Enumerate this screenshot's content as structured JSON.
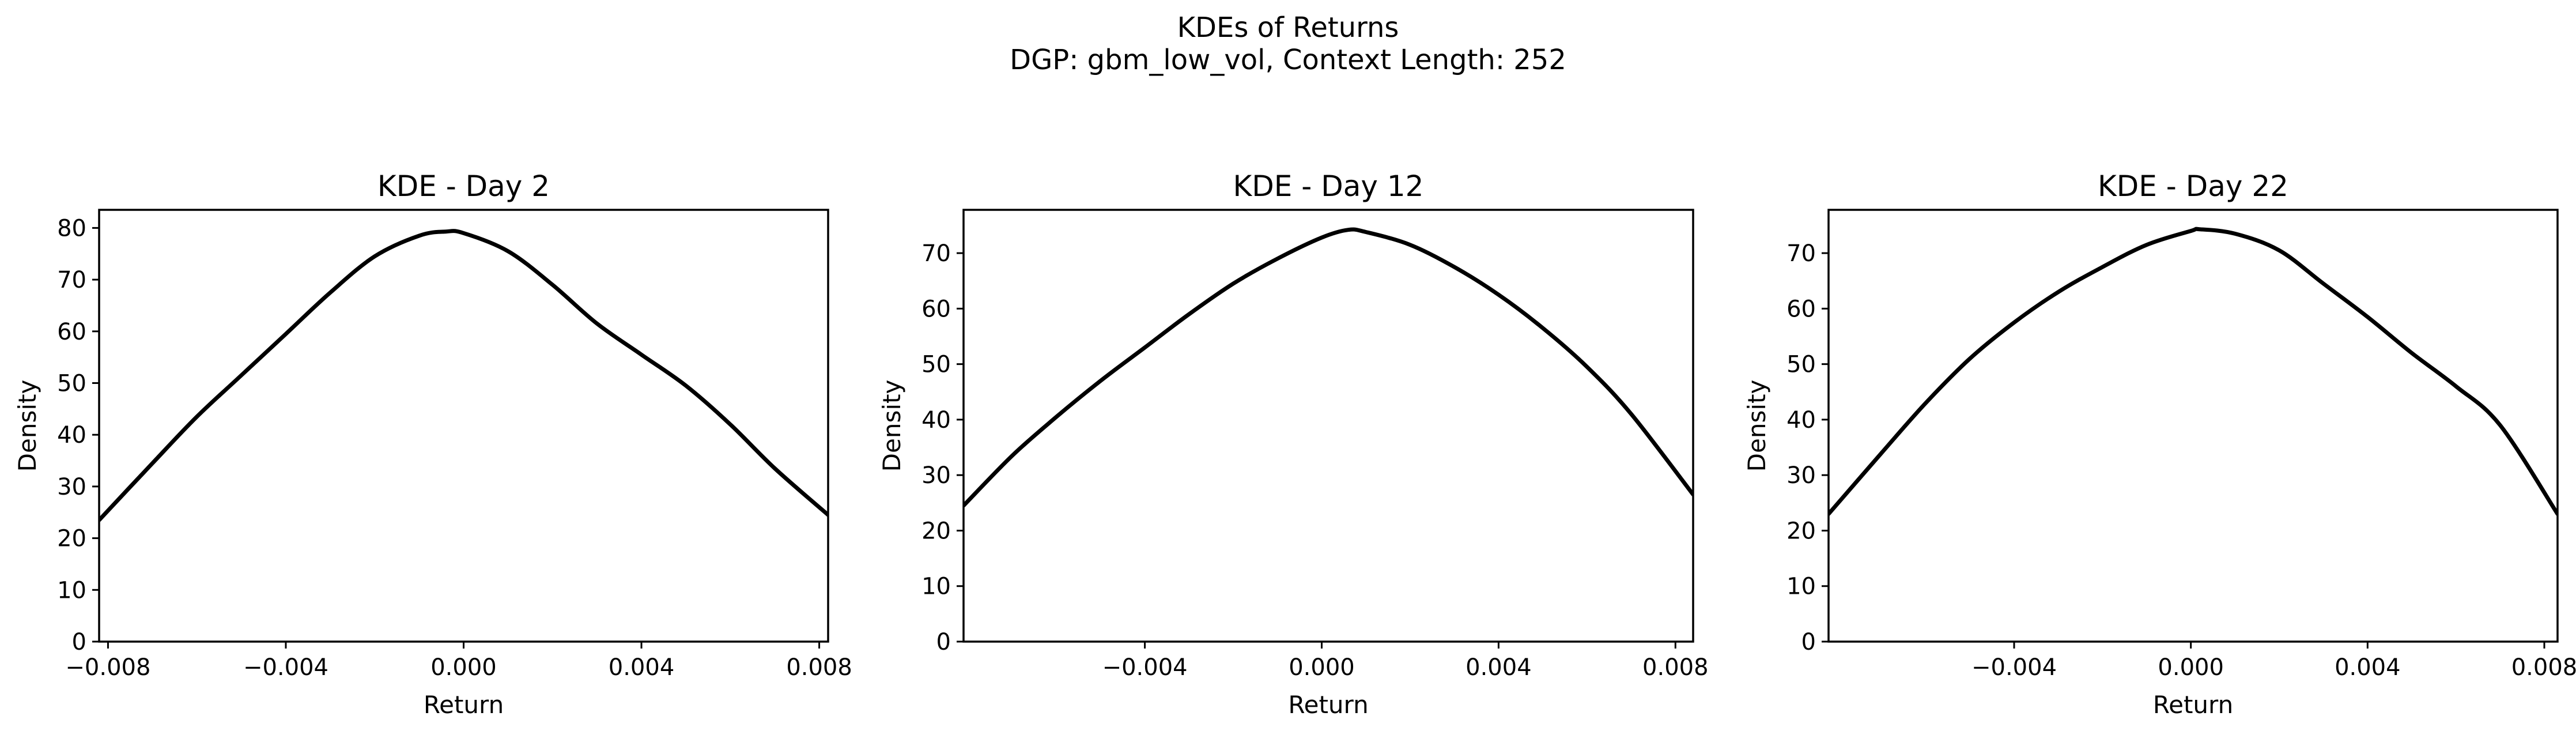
{
  "figure": {
    "title_line1": "KDEs of Returns",
    "title_line2": "DGP: gbm_low_vol, Context Length: 252",
    "line_color": "#000000"
  },
  "chart_data": [
    {
      "type": "line",
      "title": "KDE - Day 2",
      "xlabel": "Return",
      "ylabel": "Density",
      "xlim": [
        -0.0082,
        0.0082
      ],
      "ylim": [
        0,
        83.5
      ],
      "xticks": [
        -0.008,
        -0.004,
        0.0,
        0.004,
        0.008
      ],
      "xtick_labels": [
        "−0.008",
        "−0.004",
        "0.000",
        "0.004",
        "0.008"
      ],
      "yticks": [
        0,
        10,
        20,
        30,
        40,
        50,
        60,
        70,
        80
      ],
      "ytick_labels": [
        "0",
        "10",
        "20",
        "30",
        "40",
        "50",
        "60",
        "70",
        "80"
      ],
      "x": [
        -0.0082,
        -0.007,
        -0.006,
        -0.005,
        -0.004,
        -0.003,
        -0.002,
        -0.001,
        -0.0004,
        0.0,
        0.001,
        0.002,
        0.003,
        0.004,
        0.005,
        0.006,
        0.007,
        0.0082
      ],
      "y": [
        23.5,
        34.5,
        43.5,
        51.5,
        59.5,
        67.5,
        74.5,
        78.5,
        79.3,
        79.0,
        75.5,
        69.0,
        61.5,
        55.5,
        49.5,
        42.0,
        33.5,
        24.5
      ]
    },
    {
      "type": "line",
      "title": "KDE - Day 12",
      "xlabel": "Return",
      "ylabel": "Density",
      "xlim": [
        -0.0081,
        0.0084
      ],
      "ylim": [
        0,
        77.8
      ],
      "xticks": [
        -0.004,
        0.0,
        0.004,
        0.008
      ],
      "xtick_labels": [
        "−0.004",
        "0.000",
        "0.004",
        "0.008"
      ],
      "yticks": [
        0,
        10,
        20,
        30,
        40,
        50,
        60,
        70
      ],
      "ytick_labels": [
        "0",
        "10",
        "20",
        "30",
        "40",
        "50",
        "60",
        "70"
      ],
      "x": [
        -0.0081,
        -0.007,
        -0.006,
        -0.005,
        -0.004,
        -0.003,
        -0.002,
        -0.001,
        0.0,
        0.0006,
        0.001,
        0.002,
        0.003,
        0.004,
        0.005,
        0.006,
        0.007,
        0.0084
      ],
      "y": [
        24.5,
        33.5,
        40.5,
        47.0,
        53.0,
        59.0,
        64.5,
        69.0,
        72.8,
        74.2,
        73.8,
        71.5,
        67.5,
        62.5,
        56.5,
        49.5,
        41.0,
        26.5
      ]
    },
    {
      "type": "line",
      "title": "KDE - Day 22",
      "xlabel": "Return",
      "ylabel": "Density",
      "xlim": [
        -0.0082,
        0.0083
      ],
      "ylim": [
        0,
        77.8
      ],
      "xticks": [
        -0.004,
        0.0,
        0.004,
        0.008
      ],
      "xtick_labels": [
        "−0.004",
        "0.000",
        "0.004",
        "0.008"
      ],
      "yticks": [
        0,
        10,
        20,
        30,
        40,
        50,
        60,
        70
      ],
      "ytick_labels": [
        "0",
        "10",
        "20",
        "30",
        "40",
        "50",
        "60",
        "70"
      ],
      "x": [
        -0.0082,
        -0.007,
        -0.006,
        -0.005,
        -0.004,
        -0.003,
        -0.002,
        -0.001,
        0.0,
        0.0002,
        0.001,
        0.002,
        0.003,
        0.004,
        0.005,
        0.006,
        0.007,
        0.0083
      ],
      "y": [
        23.0,
        34.0,
        43.0,
        51.0,
        57.5,
        63.0,
        67.5,
        71.5,
        74.0,
        74.3,
        73.5,
        70.5,
        64.5,
        58.5,
        52.0,
        46.0,
        39.0,
        23.0
      ]
    }
  ]
}
